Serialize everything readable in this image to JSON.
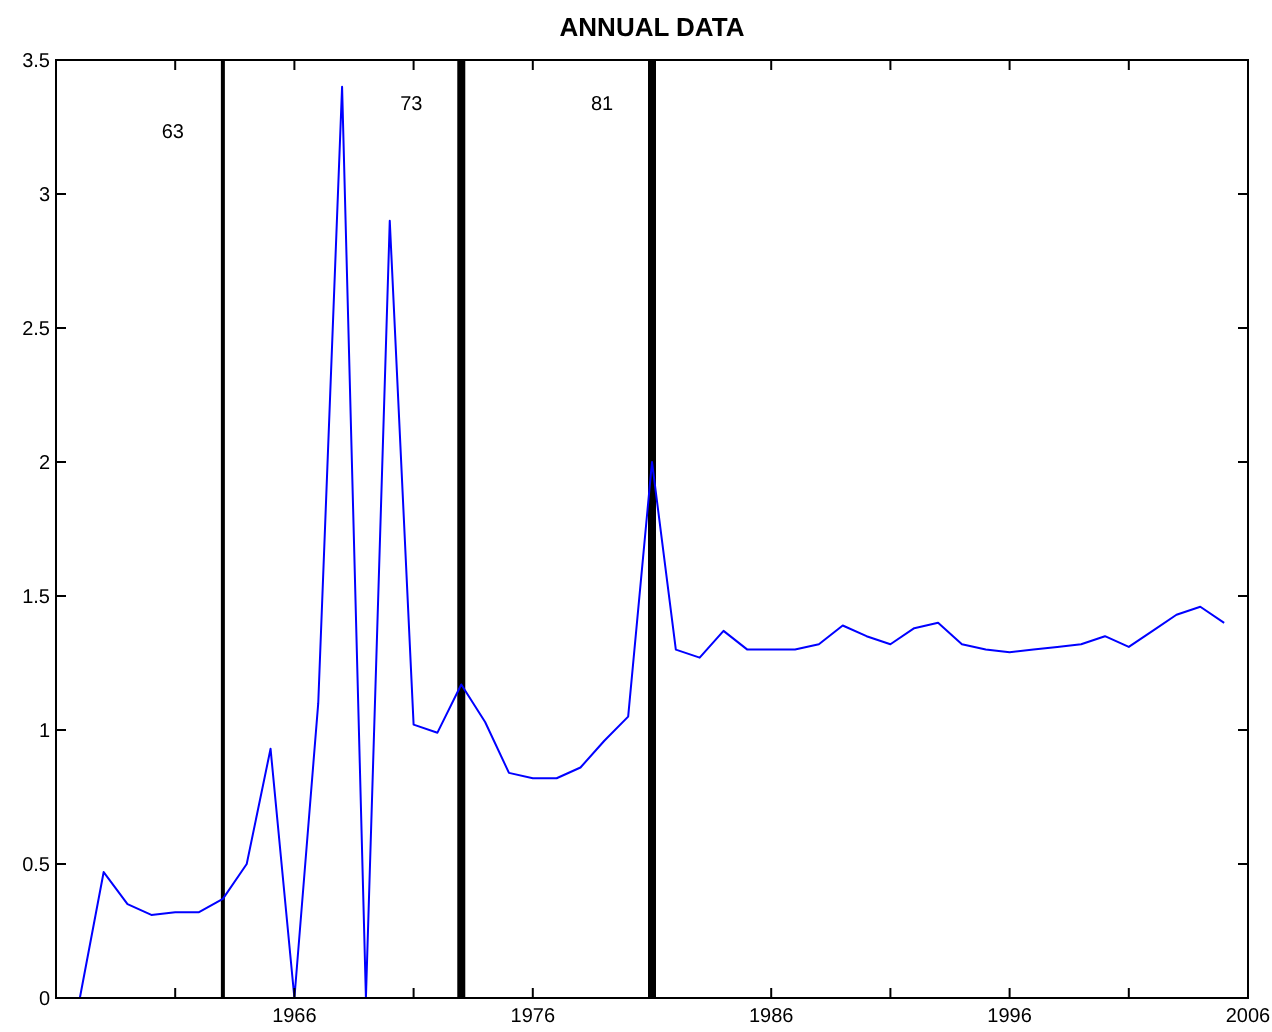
{
  "chart_data": {
    "type": "line",
    "title": "ANNUAL DATA",
    "x": [
      1957,
      1958,
      1959,
      1960,
      1961,
      1962,
      1963,
      1964,
      1965,
      1966,
      1967,
      1968,
      1969,
      1970,
      1971,
      1972,
      1973,
      1974,
      1975,
      1976,
      1977,
      1978,
      1979,
      1980,
      1981,
      1982,
      1983,
      1984,
      1985,
      1986,
      1987,
      1988,
      1989,
      1990,
      1991,
      1992,
      1993,
      1994,
      1995,
      1996,
      1997,
      1998,
      1999,
      2000,
      2001,
      2002,
      2003,
      2004,
      2005
    ],
    "series": [
      {
        "color": "#0000ff",
        "values": [
          0,
          0.47,
          0.35,
          0.31,
          0.32,
          0.32,
          0.37,
          0.5,
          0.93,
          0,
          1.1,
          3.4,
          0,
          2.9,
          1.02,
          0.99,
          1.17,
          1.03,
          0.84,
          0.82,
          0.82,
          0.86,
          0.96,
          1.05,
          2.0,
          1.3,
          1.27,
          1.37,
          1.3,
          1.3,
          1.3,
          1.32,
          1.39,
          1.35,
          1.32,
          1.38,
          1.4,
          1.32,
          1.3,
          1.29,
          1.3,
          1.31,
          1.32,
          1.35,
          1.31,
          1.37,
          1.43,
          1.46,
          1.4
        ]
      }
    ],
    "xlim": [
      1956,
      2006
    ],
    "xticks": [
      {
        "value": 1961,
        "label": null
      },
      1966,
      {
        "value": 1971,
        "label": null
      },
      1976,
      {
        "value": 1981,
        "label": null
      },
      1986,
      {
        "value": 1991,
        "label": null
      },
      1996,
      {
        "value": 2001,
        "label": null
      },
      2006
    ],
    "ylim": [
      0,
      3.5
    ],
    "yticks": [
      0,
      0.5,
      1,
      1.5,
      2,
      2.5,
      3,
      3.5
    ],
    "ref_lines": [
      {
        "axis": "x",
        "value": 1963,
        "color": "#000000"
      },
      {
        "axis": "x",
        "value": 1973,
        "color": "#000000"
      },
      {
        "axis": "x",
        "value": 1981,
        "color": "#000000"
      }
    ],
    "annotations": [
      "63",
      "73",
      "81"
    ],
    "line_style": "solid",
    "marker": "none"
  }
}
